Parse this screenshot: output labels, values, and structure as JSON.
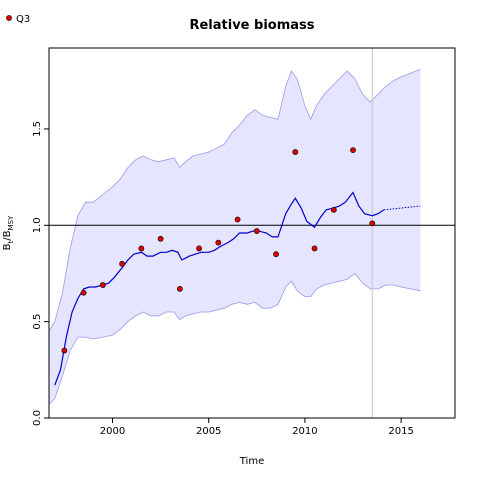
{
  "chart_data": {
    "type": "line",
    "title": "Relative biomass",
    "xlabel": "Time",
    "ylabel_main": "B",
    "ylabel_sub1": "t",
    "ylabel_sep": "/B",
    "ylabel_sub2": "MSY",
    "xlim": [
      1996.7,
      2017.8
    ],
    "ylim": [
      0,
      1.92
    ],
    "x_ticks": [
      2000,
      2005,
      2010,
      2015
    ],
    "y_ticks": [
      0.0,
      0.5,
      1.0,
      1.5
    ],
    "y_tick_labels": [
      "0.0",
      "0.5",
      "1.0",
      "1.5"
    ],
    "reference_line_y": 1.0,
    "vline_x": 2013.5,
    "legend": {
      "label": "Q3",
      "placement": "top-left"
    },
    "colors": {
      "estimate": "#0000cc",
      "band": "#e5e5ff",
      "band_edge": "#9a9aee",
      "points": "#dd0000",
      "vline": "#c8c8c8"
    },
    "estimate": {
      "x": [
        1997.0,
        1997.3,
        1997.6,
        1997.9,
        1998.2,
        1998.5,
        1998.8,
        1999.1,
        1999.5,
        1999.8,
        2000.1,
        2000.5,
        2000.8,
        2001.1,
        2001.5,
        2001.8,
        2002.1,
        2002.5,
        2002.8,
        2003.1,
        2003.4,
        2003.6,
        2004.0,
        2004.3,
        2004.6,
        2005.0,
        2005.3,
        2005.6,
        2006.0,
        2006.3,
        2006.6,
        2007.0,
        2007.3,
        2007.6,
        2008.0,
        2008.3,
        2008.6,
        2009.0,
        2009.3,
        2009.5,
        2009.8,
        2010.1,
        2010.5,
        2010.8,
        2011.1,
        2011.5,
        2011.8,
        2012.1,
        2012.5,
        2012.8,
        2013.1,
        2013.5,
        2013.8,
        2014.1
      ],
      "y": [
        0.17,
        0.25,
        0.42,
        0.55,
        0.62,
        0.67,
        0.68,
        0.68,
        0.69,
        0.7,
        0.73,
        0.78,
        0.82,
        0.85,
        0.86,
        0.84,
        0.84,
        0.86,
        0.86,
        0.87,
        0.86,
        0.82,
        0.84,
        0.85,
        0.86,
        0.86,
        0.87,
        0.89,
        0.91,
        0.93,
        0.96,
        0.96,
        0.97,
        0.97,
        0.96,
        0.94,
        0.94,
        1.06,
        1.11,
        1.14,
        1.09,
        1.02,
        0.99,
        1.04,
        1.08,
        1.09,
        1.1,
        1.12,
        1.17,
        1.1,
        1.06,
        1.05,
        1.06,
        1.08
      ]
    },
    "forecast": {
      "x": [
        2014.1,
        2016.0
      ],
      "y": [
        1.08,
        1.1
      ]
    },
    "band_upper": {
      "x": [
        1996.7,
        1997.0,
        1997.4,
        1997.8,
        1998.2,
        1998.6,
        1999.0,
        1999.5,
        2000.0,
        2000.4,
        2000.8,
        2001.2,
        2001.6,
        2002.0,
        2002.4,
        2002.8,
        2003.2,
        2003.5,
        2003.8,
        2004.2,
        2004.6,
        2005.0,
        2005.4,
        2005.8,
        2006.2,
        2006.6,
        2007.0,
        2007.4,
        2007.8,
        2008.2,
        2008.6,
        2009.0,
        2009.3,
        2009.6,
        2010.0,
        2010.3,
        2010.6,
        2011.0,
        2011.4,
        2011.8,
        2012.2,
        2012.6,
        2013.0,
        2013.4,
        2013.8,
        2014.2,
        2014.6,
        2015.0,
        2015.5,
        2016.0
      ],
      "y": [
        0.45,
        0.5,
        0.65,
        0.88,
        1.05,
        1.12,
        1.12,
        1.16,
        1.2,
        1.24,
        1.3,
        1.34,
        1.36,
        1.34,
        1.33,
        1.34,
        1.35,
        1.3,
        1.33,
        1.36,
        1.37,
        1.38,
        1.4,
        1.42,
        1.48,
        1.52,
        1.57,
        1.6,
        1.57,
        1.56,
        1.55,
        1.72,
        1.8,
        1.76,
        1.62,
        1.55,
        1.62,
        1.68,
        1.72,
        1.76,
        1.8,
        1.76,
        1.68,
        1.64,
        1.68,
        1.72,
        1.75,
        1.77,
        1.79,
        1.81
      ]
    },
    "band_lower": {
      "x": [
        1996.7,
        1997.0,
        1997.4,
        1997.8,
        1998.2,
        1998.6,
        1999.0,
        1999.5,
        2000.0,
        2000.4,
        2000.8,
        2001.2,
        2001.6,
        2002.0,
        2002.4,
        2002.8,
        2003.2,
        2003.5,
        2003.8,
        2004.2,
        2004.6,
        2005.0,
        2005.4,
        2005.8,
        2006.2,
        2006.6,
        2007.0,
        2007.4,
        2007.8,
        2008.2,
        2008.6,
        2009.0,
        2009.3,
        2009.6,
        2010.0,
        2010.3,
        2010.6,
        2011.0,
        2011.4,
        2011.8,
        2012.2,
        2012.6,
        2013.0,
        2013.4,
        2013.8,
        2014.2,
        2014.6,
        2015.0,
        2015.5,
        2016.0
      ],
      "y": [
        0.07,
        0.1,
        0.22,
        0.35,
        0.42,
        0.42,
        0.41,
        0.42,
        0.43,
        0.46,
        0.5,
        0.53,
        0.55,
        0.53,
        0.53,
        0.55,
        0.55,
        0.51,
        0.53,
        0.54,
        0.55,
        0.55,
        0.56,
        0.57,
        0.59,
        0.6,
        0.59,
        0.6,
        0.57,
        0.57,
        0.59,
        0.68,
        0.71,
        0.66,
        0.63,
        0.63,
        0.67,
        0.69,
        0.7,
        0.71,
        0.72,
        0.75,
        0.7,
        0.67,
        0.67,
        0.69,
        0.69,
        0.68,
        0.67,
        0.66
      ]
    },
    "series": [
      {
        "name": "Q3",
        "type": "scatter",
        "x": [
          1997.5,
          1998.5,
          1999.5,
          2000.5,
          2001.5,
          2002.5,
          2003.5,
          2004.5,
          2005.5,
          2006.5,
          2007.5,
          2008.5,
          2009.5,
          2010.5,
          2011.5,
          2012.5,
          2013.5
        ],
        "y": [
          0.35,
          0.65,
          0.69,
          0.8,
          0.88,
          0.93,
          0.67,
          0.88,
          0.91,
          1.03,
          0.97,
          0.85,
          1.38,
          0.88,
          1.08,
          1.39,
          1.01
        ]
      }
    ]
  }
}
